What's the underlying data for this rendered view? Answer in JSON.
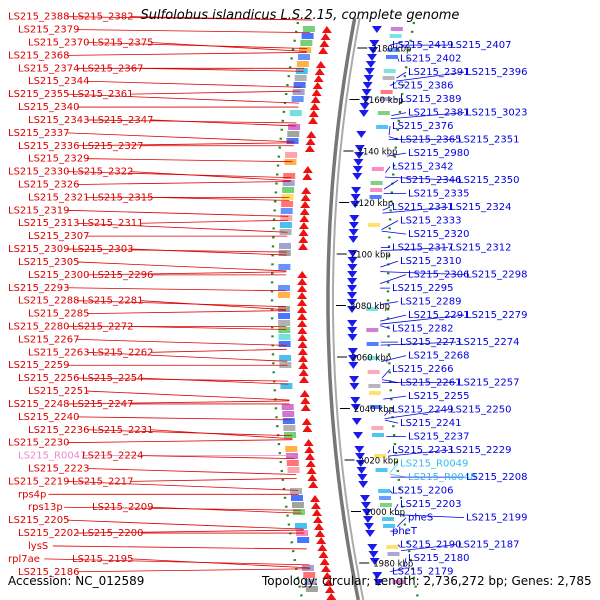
{
  "title": "Sulfolobus islandicus L.S.2.15, complete genome",
  "footer": {
    "accession": "Accession: NC_012589",
    "summary": "Topology: circular; Length: 2,736,272 bp; Genes: 2,785"
  },
  "colors": {
    "left_genes": "#dd0000",
    "right_genes": "#0000dd",
    "rna_left": "#ee88cc",
    "rna_right": "#33bbee",
    "backbone": "#888888",
    "dots": "#228822"
  },
  "ruler": [
    {
      "label": "2180 kbp"
    },
    {
      "label": "2160 kbp"
    },
    {
      "label": "2140 kbp"
    },
    {
      "label": "2120 kbp"
    },
    {
      "label": "2100 kbp"
    },
    {
      "label": "2080 kbp"
    },
    {
      "label": "2060 kbp"
    },
    {
      "label": "2040 kbp"
    },
    {
      "label": "2020 kbp"
    },
    {
      "label": "2000 kbp"
    },
    {
      "label": "1980 kbp"
    }
  ],
  "left_labels": [
    {
      "text": "LS215_2388",
      "kind": "gene"
    },
    {
      "text": "LS215_2382",
      "kind": "gene"
    },
    {
      "text": "LS215_2379",
      "kind": "gene"
    },
    {
      "text": "LS215_2370",
      "kind": "gene"
    },
    {
      "text": "LS215_2375",
      "kind": "gene"
    },
    {
      "text": "LS215_2368",
      "kind": "gene"
    },
    {
      "text": "LS215_2374",
      "kind": "gene"
    },
    {
      "text": "LS215_2367",
      "kind": "gene"
    },
    {
      "text": "LS215_2344",
      "kind": "gene"
    },
    {
      "text": "LS215_2355",
      "kind": "gene"
    },
    {
      "text": "LS215_2361",
      "kind": "gene"
    },
    {
      "text": "LS215_2340",
      "kind": "gene"
    },
    {
      "text": "LS215_2343",
      "kind": "gene"
    },
    {
      "text": "LS215_2347",
      "kind": "gene"
    },
    {
      "text": "LS215_2337",
      "kind": "gene"
    },
    {
      "text": "LS215_2336",
      "kind": "gene"
    },
    {
      "text": "LS215_2327",
      "kind": "gene"
    },
    {
      "text": "LS215_2329",
      "kind": "gene"
    },
    {
      "text": "LS215_2330",
      "kind": "gene"
    },
    {
      "text": "LS215_2322",
      "kind": "gene"
    },
    {
      "text": "LS215_2326",
      "kind": "gene"
    },
    {
      "text": "LS215_2321",
      "kind": "gene"
    },
    {
      "text": "LS215_2315",
      "kind": "gene"
    },
    {
      "text": "LS215_2319",
      "kind": "gene"
    },
    {
      "text": "LS215_2313",
      "kind": "gene"
    },
    {
      "text": "LS215_2311",
      "kind": "gene"
    },
    {
      "text": "LS215_2307",
      "kind": "gene"
    },
    {
      "text": "LS215_2309",
      "kind": "gene"
    },
    {
      "text": "LS215_2303",
      "kind": "gene"
    },
    {
      "text": "LS215_2305",
      "kind": "gene"
    },
    {
      "text": "LS215_2300",
      "kind": "gene"
    },
    {
      "text": "LS215_2296",
      "kind": "gene"
    },
    {
      "text": "LS215_2293",
      "kind": "gene"
    },
    {
      "text": "LS215_2288",
      "kind": "gene"
    },
    {
      "text": "LS215_2281",
      "kind": "gene"
    },
    {
      "text": "LS215_2285",
      "kind": "gene"
    },
    {
      "text": "LS215_2280",
      "kind": "gene"
    },
    {
      "text": "LS215_2272",
      "kind": "gene"
    },
    {
      "text": "LS215_2267",
      "kind": "gene"
    },
    {
      "text": "LS215_2263",
      "kind": "gene"
    },
    {
      "text": "LS215_2262",
      "kind": "gene"
    },
    {
      "text": "LS215_2259",
      "kind": "gene"
    },
    {
      "text": "LS215_2256",
      "kind": "gene"
    },
    {
      "text": "LS215_2254",
      "kind": "gene"
    },
    {
      "text": "LS215_2251",
      "kind": "gene"
    },
    {
      "text": "LS215_2248",
      "kind": "gene"
    },
    {
      "text": "LS215_2247",
      "kind": "gene"
    },
    {
      "text": "LS215_2240",
      "kind": "gene"
    },
    {
      "text": "LS215_2236",
      "kind": "gene"
    },
    {
      "text": "LS215_2231",
      "kind": "gene"
    },
    {
      "text": "LS215_2230",
      "kind": "gene"
    },
    {
      "text": "LS215_R0047",
      "kind": "rna"
    },
    {
      "text": "LS215_2224",
      "kind": "gene"
    },
    {
      "text": "LS215_2223",
      "kind": "gene"
    },
    {
      "text": "LS215_2219",
      "kind": "gene"
    },
    {
      "text": "LS215_2217",
      "kind": "gene"
    },
    {
      "text": "rps4p",
      "kind": "gene"
    },
    {
      "text": "rps13p",
      "kind": "gene"
    },
    {
      "text": "LS215_2209",
      "kind": "gene"
    },
    {
      "text": "LS215_2205",
      "kind": "gene"
    },
    {
      "text": "LS215_2202",
      "kind": "gene"
    },
    {
      "text": "LS215_2200",
      "kind": "gene"
    },
    {
      "text": "lysS",
      "kind": "gene"
    },
    {
      "text": "rpl7ae",
      "kind": "gene"
    },
    {
      "text": "LS215_2195",
      "kind": "gene"
    },
    {
      "text": "LS215_2186",
      "kind": "gene"
    }
  ],
  "right_labels": [
    {
      "text": "LS215_2419",
      "kind": "gene"
    },
    {
      "text": "LS215_2407",
      "kind": "gene"
    },
    {
      "text": "LS215_2402",
      "kind": "gene"
    },
    {
      "text": "LS215_2391",
      "kind": "gene"
    },
    {
      "text": "LS215_2396",
      "kind": "gene"
    },
    {
      "text": "LS215_2386",
      "kind": "gene"
    },
    {
      "text": "LS215_2389",
      "kind": "gene"
    },
    {
      "text": "LS215_2381",
      "kind": "gene"
    },
    {
      "text": "LS215_3023",
      "kind": "gene"
    },
    {
      "text": "LS215_2376",
      "kind": "gene"
    },
    {
      "text": "LS215_2365",
      "kind": "gene"
    },
    {
      "text": "LS215_2351",
      "kind": "gene"
    },
    {
      "text": "LS215_2980",
      "kind": "gene"
    },
    {
      "text": "LS215_2342",
      "kind": "gene"
    },
    {
      "text": "LS215_2346",
      "kind": "gene"
    },
    {
      "text": "LS215_2350",
      "kind": "gene"
    },
    {
      "text": "LS215_2335",
      "kind": "gene"
    },
    {
      "text": "LS215_2331",
      "kind": "gene"
    },
    {
      "text": "LS215_2324",
      "kind": "gene"
    },
    {
      "text": "LS215_2333",
      "kind": "gene"
    },
    {
      "text": "LS215_2320",
      "kind": "gene"
    },
    {
      "text": "LS215_2317",
      "kind": "gene"
    },
    {
      "text": "LS215_2312",
      "kind": "gene"
    },
    {
      "text": "LS215_2310",
      "kind": "gene"
    },
    {
      "text": "LS215_2306",
      "kind": "gene"
    },
    {
      "text": "LS215_2298",
      "kind": "gene"
    },
    {
      "text": "LS215_2295",
      "kind": "gene"
    },
    {
      "text": "LS215_2289",
      "kind": "gene"
    },
    {
      "text": "LS215_2291",
      "kind": "gene"
    },
    {
      "text": "LS215_2279",
      "kind": "gene"
    },
    {
      "text": "LS215_2282",
      "kind": "gene"
    },
    {
      "text": "LS215_2273",
      "kind": "gene"
    },
    {
      "text": "LS215_2274",
      "kind": "gene"
    },
    {
      "text": "LS215_2268",
      "kind": "gene"
    },
    {
      "text": "LS215_2266",
      "kind": "gene"
    },
    {
      "text": "LS215_2261",
      "kind": "gene"
    },
    {
      "text": "LS215_2257",
      "kind": "gene"
    },
    {
      "text": "LS215_2255",
      "kind": "gene"
    },
    {
      "text": "LS215_2249",
      "kind": "gene"
    },
    {
      "text": "LS215_2250",
      "kind": "gene"
    },
    {
      "text": "LS215_2241",
      "kind": "gene"
    },
    {
      "text": "LS215_2237",
      "kind": "gene"
    },
    {
      "text": "LS215_2233",
      "kind": "gene"
    },
    {
      "text": "LS215_2229",
      "kind": "gene"
    },
    {
      "text": "LS215_R0049",
      "kind": "rna"
    },
    {
      "text": "LS215_R0048",
      "kind": "rna"
    },
    {
      "text": "LS215_2208",
      "kind": "gene"
    },
    {
      "text": "LS215_2206",
      "kind": "gene"
    },
    {
      "text": "LS215_2203",
      "kind": "gene"
    },
    {
      "text": "pheS",
      "kind": "gene"
    },
    {
      "text": "LS215_2199",
      "kind": "gene"
    },
    {
      "text": "pheT",
      "kind": "gene"
    },
    {
      "text": "LS215_2190",
      "kind": "gene"
    },
    {
      "text": "LS215_2187",
      "kind": "gene"
    },
    {
      "text": "LS215_2180",
      "kind": "gene"
    },
    {
      "text": "LS215_2179",
      "kind": "gene"
    }
  ]
}
